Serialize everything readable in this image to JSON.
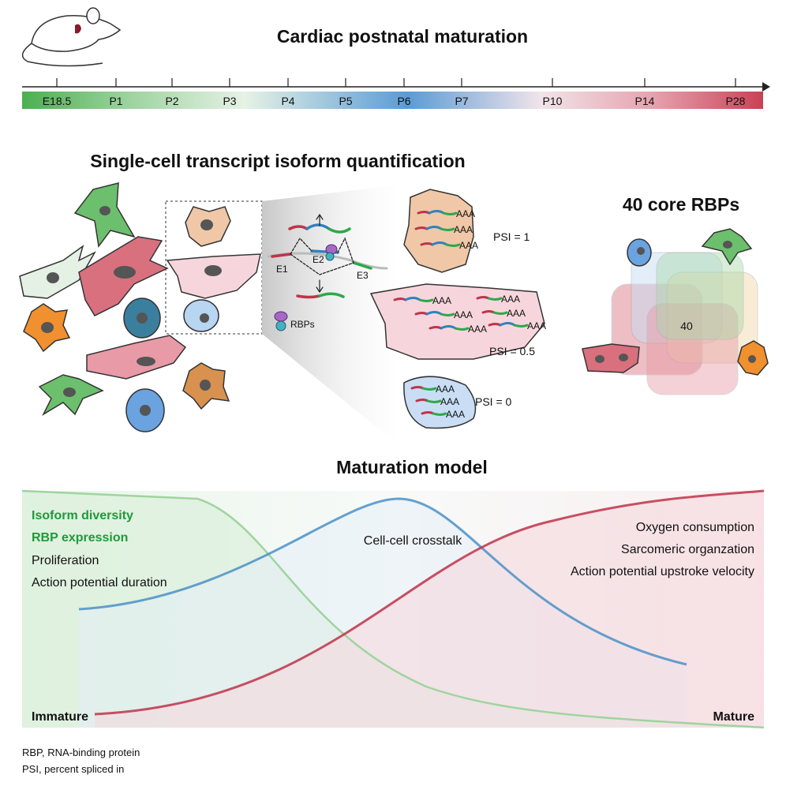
{
  "timeline": {
    "title": "Cardiac postnatal maturation",
    "ticks": [
      "E18.5",
      "P1",
      "P2",
      "P3",
      "P4",
      "P5",
      "P6",
      "P7",
      "P10",
      "P14",
      "P28"
    ],
    "gradient_colors": [
      "#4caf50",
      "#e8f3e8",
      "#5b9bd5",
      "#f2d9de",
      "#c94155"
    ]
  },
  "quantification": {
    "title": "Single-cell transcript isoform quantification",
    "exons": [
      "E1",
      "E2",
      "E3"
    ],
    "rbp_label": "RBPs",
    "polya": "AAA",
    "psi": [
      "PSI = 1",
      "PSI = 0.5",
      "PSI = 0"
    ]
  },
  "rbps": {
    "title": "40 core RBPs",
    "venn_center": "40"
  },
  "model": {
    "title": "Maturation model",
    "left_highlight": [
      "Isoform diversity",
      "RBP expression"
    ],
    "left_items": [
      "Proliferation",
      "Action potential duration"
    ],
    "middle": "Cell-cell crosstalk",
    "right_items": [
      "Oxygen consumption",
      "Sarcomeric organzation",
      "Action potential upstroke velocity"
    ],
    "start_label": "Immature",
    "end_label": "Mature",
    "colors": {
      "immature": "#1f9a3a",
      "crosstalk": "#4a90c8",
      "mature": "#c0334a"
    }
  },
  "footnotes": [
    "RBP, RNA-binding protein",
    "PSI, percent spliced in"
  ]
}
